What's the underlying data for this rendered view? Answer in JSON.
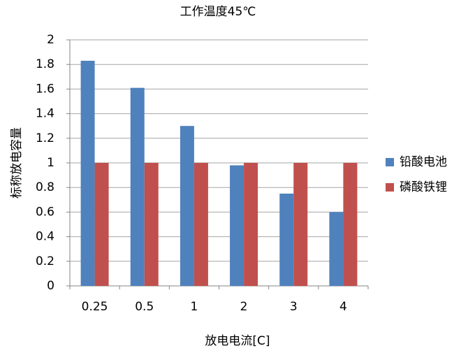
{
  "chart_data": {
    "type": "bar",
    "title": "工作温度45℃",
    "x_label": "放电电流[C]",
    "y_label": "标称放电容量",
    "categories": [
      "0.25",
      "0.5",
      "1",
      "2",
      "3",
      "4"
    ],
    "series": [
      {
        "name": "铅酸电池",
        "color": "#4f81bd",
        "values": [
          1.83,
          1.61,
          1.3,
          0.98,
          0.75,
          0.6
        ]
      },
      {
        "name": "磷酸铁锂",
        "color": "#c0504d",
        "values": [
          1,
          1,
          1,
          1,
          1,
          1
        ]
      }
    ],
    "ylim": [
      0,
      2
    ],
    "yticks": [
      0,
      0.2,
      0.4,
      0.6,
      0.8,
      1,
      1.2,
      1.4,
      1.6,
      1.8,
      2
    ],
    "grid": true,
    "legend": "right"
  }
}
